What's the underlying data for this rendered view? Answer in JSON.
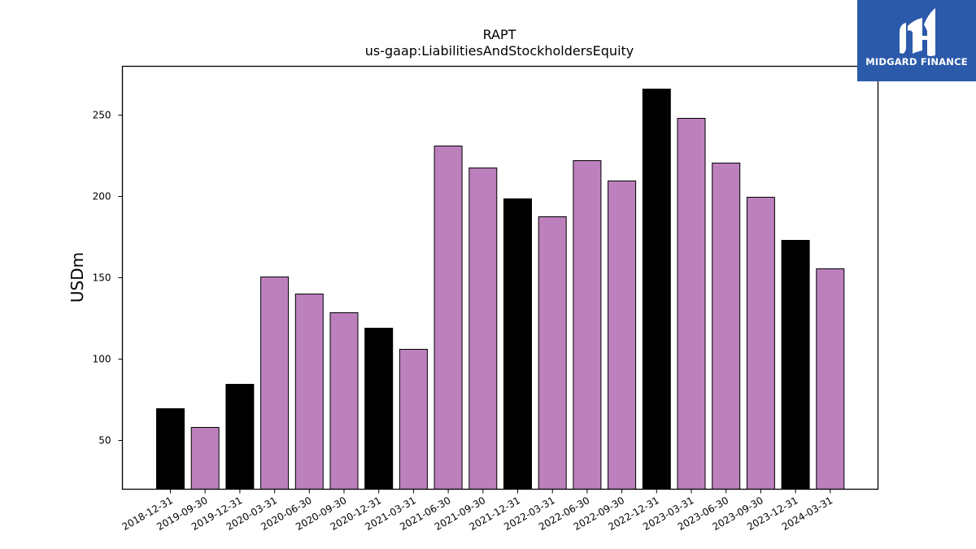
{
  "brand": {
    "name": "MIDGARD FINANCE",
    "background": "#2c5aab",
    "text_color": "#ffffff"
  },
  "colors": {
    "annual_bar": "#000000",
    "quarterly_bar": "#bc80bd",
    "bar_edge": "#000000"
  },
  "chart_data": {
    "type": "bar",
    "title": "RAPT",
    "subtitle": "us-gaap:LiabilitiesAndStockholdersEquity",
    "xlabel": "",
    "ylabel": "USDm",
    "ylim": [
      20,
      280
    ],
    "yticks": [
      50,
      100,
      150,
      200,
      250
    ],
    "grid": false,
    "categories": [
      "2018-12-31",
      "2019-09-30",
      "2019-12-31",
      "2020-03-31",
      "2020-06-30",
      "2020-09-30",
      "2020-12-31",
      "2021-03-31",
      "2021-06-30",
      "2021-09-30",
      "2021-12-31",
      "2022-03-31",
      "2022-06-30",
      "2022-09-30",
      "2022-12-31",
      "2023-03-31",
      "2023-06-30",
      "2023-09-30",
      "2023-12-31",
      "2024-03-31"
    ],
    "values": [
      69.5,
      58,
      84.5,
      150.5,
      140,
      128.5,
      119,
      106,
      231,
      217.5,
      198.5,
      187.5,
      222,
      209.5,
      266,
      248,
      220.5,
      199.5,
      173,
      155.5
    ],
    "bar_colors": [
      "#000000",
      "#bc80bd",
      "#000000",
      "#bc80bd",
      "#bc80bd",
      "#bc80bd",
      "#000000",
      "#bc80bd",
      "#bc80bd",
      "#bc80bd",
      "#000000",
      "#bc80bd",
      "#bc80bd",
      "#bc80bd",
      "#000000",
      "#bc80bd",
      "#bc80bd",
      "#bc80bd",
      "#000000",
      "#bc80bd"
    ]
  }
}
